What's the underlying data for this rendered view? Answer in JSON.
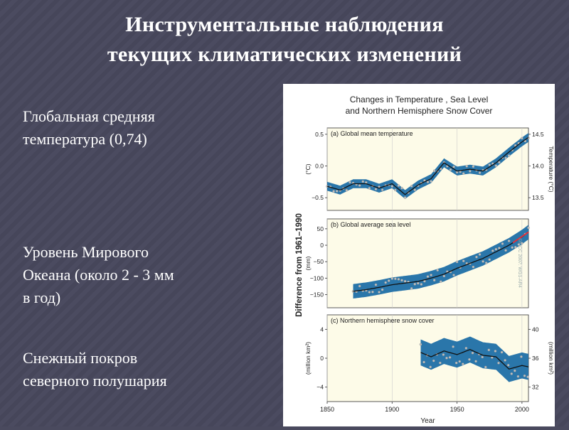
{
  "slide": {
    "title_line1": "Инструментальные наблюдения",
    "title_line2": "текущих климатических изменений",
    "bullets": [
      {
        "lines": [
          "Глобальная средняя",
          "температура (0,74)"
        ]
      },
      {
        "lines": [
          "Уровень Мирового",
          "Океана (около 2 - 3 мм",
          "в год)"
        ]
      },
      {
        "lines": [
          "Снежный покров",
          "северного полушария"
        ]
      }
    ]
  },
  "colors": {
    "background": "#4a4a5e",
    "panel_fill": "#fdfbe8",
    "band": "#1f6fa6",
    "line": "#111111",
    "dots": "#bfbfbf",
    "recent_sea": "#e0303a"
  },
  "chart_data": [
    {
      "type": "line",
      "figure_title": [
        "Changes in Temperature , Sea Level",
        "and Northern Hemisphere Snow Cover"
      ],
      "panel_title": "(a) Global mean temperature",
      "ylabel": "(°C)",
      "ylabel_right": "Temperature (°C)",
      "shared_ylabel": "Difference from 1961–1990",
      "yticks": [
        "0.5",
        "0.0",
        "−0.5"
      ],
      "yticks_right": [
        "14.5",
        "14.0",
        "13.5"
      ],
      "ylim": [
        -0.7,
        0.6
      ],
      "band_halfwidth": 0.07,
      "x": [
        1850,
        1860,
        1870,
        1880,
        1890,
        1900,
        1910,
        1920,
        1930,
        1940,
        1950,
        1960,
        1970,
        1980,
        1990,
        2000,
        2005
      ],
      "values": [
        -0.32,
        -0.38,
        -0.28,
        -0.28,
        -0.35,
        -0.28,
        -0.45,
        -0.3,
        -0.2,
        0.05,
        -0.08,
        -0.05,
        -0.08,
        0.05,
        0.22,
        0.38,
        0.45
      ]
    },
    {
      "type": "line",
      "panel_title": "(b) Global average sea level",
      "ylabel": "(mm)",
      "watermark": "©IPCC 2007: WG1-AR4",
      "yticks": [
        "50",
        "0",
        "−50",
        "−100",
        "−150"
      ],
      "ylim": [
        -190,
        80
      ],
      "band_halfwidth": 22,
      "x": [
        1870,
        1880,
        1890,
        1900,
        1910,
        1920,
        1930,
        1940,
        1950,
        1960,
        1970,
        1980,
        1990,
        2000,
        2005
      ],
      "values": [
        -140,
        -135,
        -128,
        -120,
        -115,
        -110,
        -100,
        -88,
        -70,
        -55,
        -40,
        -20,
        0,
        25,
        40
      ]
    },
    {
      "type": "line",
      "panel_title": "(c) Northern hemisphere snow cover",
      "ylabel": "(million km²)",
      "ylabel_right": "(million km²)",
      "yticks": [
        "4",
        "0",
        "−4"
      ],
      "yticks_right": [
        "40",
        "36",
        "32"
      ],
      "ylim": [
        -6,
        6
      ],
      "band_halfwidth": 1.8,
      "x": [
        1922,
        1930,
        1940,
        1950,
        1960,
        1970,
        1980,
        1990,
        2000,
        2005
      ],
      "values": [
        0.8,
        0.2,
        1.0,
        0.5,
        1.2,
        0.4,
        0.2,
        -1.5,
        -1.0,
        -1.2
      ]
    }
  ],
  "x_axis": {
    "xlabel": "Year",
    "xlim": [
      1850,
      2005
    ],
    "ticks": [
      "1850",
      "1900",
      "1950",
      "2000"
    ]
  }
}
